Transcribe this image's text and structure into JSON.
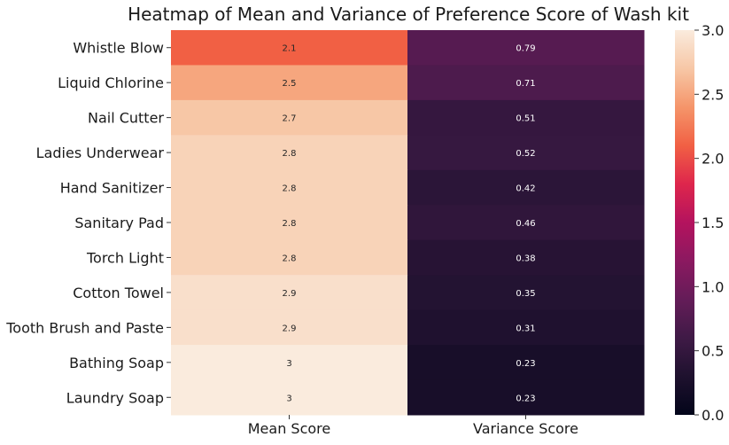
{
  "chart_data": {
    "type": "heatmap",
    "title": "Heatmap of Mean and Variance of Preference Score of Wash kit",
    "columns": [
      "Mean Score",
      "Variance Score"
    ],
    "rows": [
      "Whistle Blow",
      "Liquid Chlorine",
      "Nail Cutter",
      "Ladies Underwear",
      "Hand Sanitizer",
      "Sanitary Pad",
      "Torch Light",
      "Cotton Towel",
      "Tooth Brush and Paste",
      "Bathing Soap",
      "Laundry Soap"
    ],
    "values": [
      [
        2.1,
        0.79
      ],
      [
        2.5,
        0.71
      ],
      [
        2.7,
        0.51
      ],
      [
        2.8,
        0.52
      ],
      [
        2.8,
        0.42
      ],
      [
        2.8,
        0.46
      ],
      [
        2.8,
        0.38
      ],
      [
        2.9,
        0.35
      ],
      [
        2.9,
        0.31
      ],
      [
        3,
        0.23
      ],
      [
        3,
        0.23
      ]
    ],
    "value_range": [
      0,
      3.0
    ],
    "colorbar": {
      "ticks": [
        "0.0",
        "0.5",
        "1.0",
        "1.5",
        "2.0",
        "2.5",
        "3.0"
      ],
      "placement": "right"
    },
    "colormap": "rocket",
    "annotations": true
  }
}
